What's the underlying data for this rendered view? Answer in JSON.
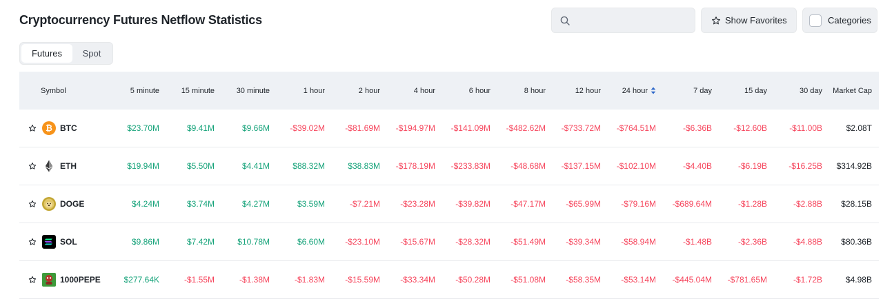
{
  "header": {
    "title": "Cryptocurrency Futures Netflow Statistics",
    "search_placeholder": "",
    "favorites_label": "Show Favorites",
    "categories_label": "Categories"
  },
  "tabs": [
    {
      "label": "Futures",
      "active": true
    },
    {
      "label": "Spot",
      "active": false
    }
  ],
  "columns": [
    "Symbol",
    "5 minute",
    "15 minute",
    "30 minute",
    "1 hour",
    "2 hour",
    "4 hour",
    "6 hour",
    "8 hour",
    "12 hour",
    "24 hour",
    "7 day",
    "15 day",
    "30 day",
    "Market Cap"
  ],
  "sorted_column": "24 hour",
  "colors": {
    "positive": "#16a37a",
    "negative": "#f6465d",
    "header_bg": "#eef1f5"
  },
  "rows": [
    {
      "symbol": "BTC",
      "icon": "btc-icon",
      "cells": [
        "$23.70M",
        "$9.41M",
        "$9.66M",
        "-$39.02M",
        "-$81.69M",
        "-$194.97M",
        "-$141.09M",
        "-$482.62M",
        "-$733.72M",
        "-$764.51M",
        "-$6.36B",
        "-$12.60B",
        "-$11.00B"
      ],
      "market_cap": "$2.08T"
    },
    {
      "symbol": "ETH",
      "icon": "eth-icon",
      "cells": [
        "$19.94M",
        "$5.50M",
        "$4.41M",
        "$88.32M",
        "$38.83M",
        "-$178.19M",
        "-$233.83M",
        "-$48.68M",
        "-$137.15M",
        "-$102.10M",
        "-$4.40B",
        "-$6.19B",
        "-$16.25B"
      ],
      "market_cap": "$314.92B"
    },
    {
      "symbol": "DOGE",
      "icon": "doge-icon",
      "cells": [
        "$4.24M",
        "$3.74M",
        "$4.27M",
        "$3.59M",
        "-$7.21M",
        "-$23.28M",
        "-$39.82M",
        "-$47.17M",
        "-$65.99M",
        "-$79.16M",
        "-$689.64M",
        "-$1.28B",
        "-$2.88B"
      ],
      "market_cap": "$28.15B"
    },
    {
      "symbol": "SOL",
      "icon": "sol-icon",
      "cells": [
        "$9.86M",
        "$7.42M",
        "$10.78M",
        "$6.60M",
        "-$23.10M",
        "-$15.67M",
        "-$28.32M",
        "-$51.49M",
        "-$39.34M",
        "-$58.94M",
        "-$1.48B",
        "-$2.36B",
        "-$4.88B"
      ],
      "market_cap": "$80.36B"
    },
    {
      "symbol": "1000PEPE",
      "icon": "pepe-icon",
      "cells": [
        "$277.64K",
        "-$1.55M",
        "-$1.38M",
        "-$1.83M",
        "-$15.59M",
        "-$33.34M",
        "-$50.28M",
        "-$51.08M",
        "-$58.35M",
        "-$53.14M",
        "-$445.04M",
        "-$781.65M",
        "-$1.72B"
      ],
      "market_cap": "$4.98B"
    }
  ]
}
